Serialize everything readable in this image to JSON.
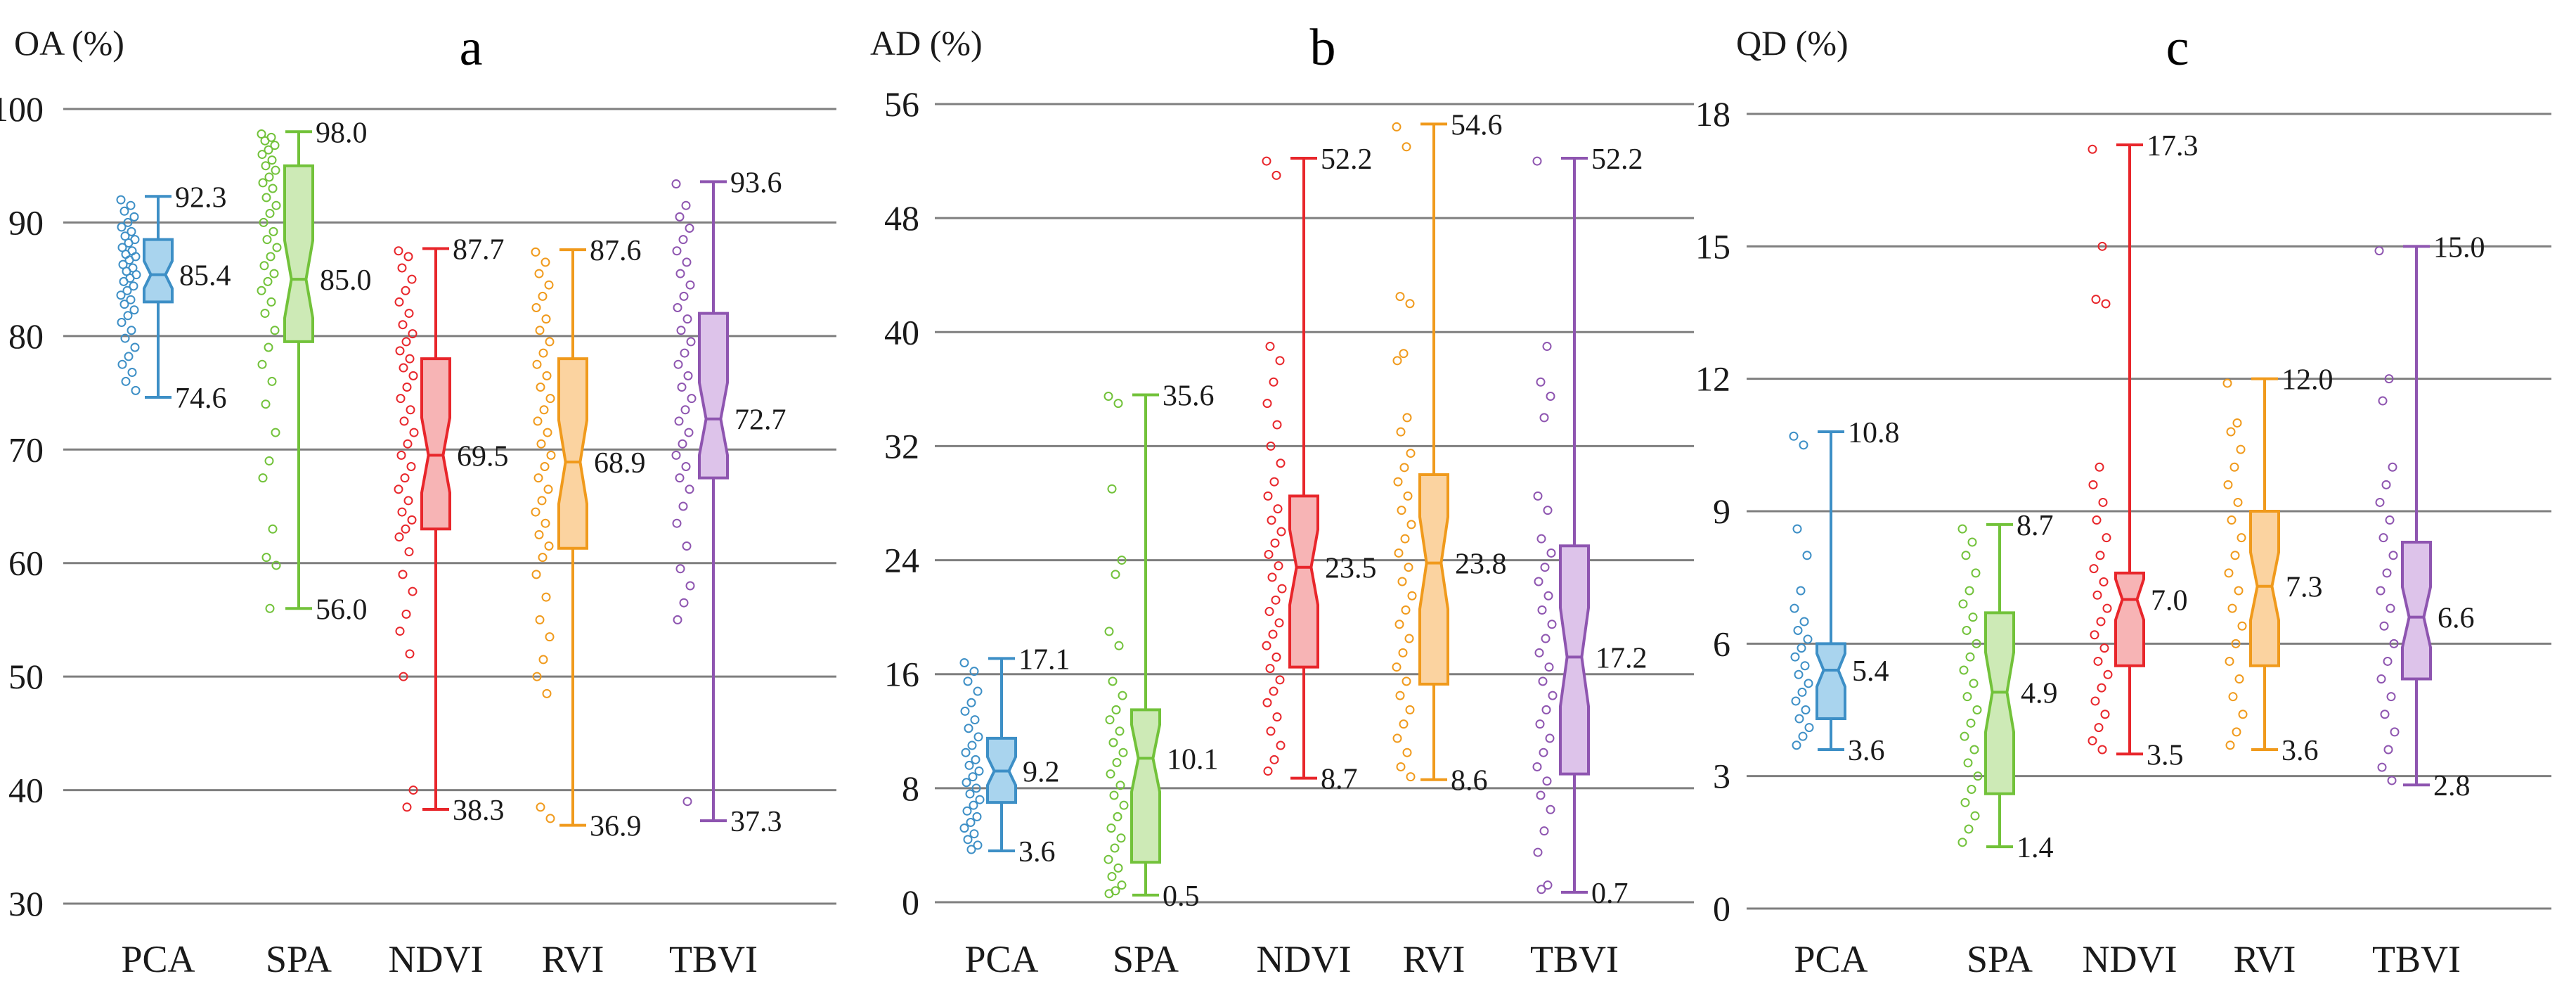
{
  "chart_data": [
    {
      "type": "boxplot",
      "title": "a",
      "ylabel": "OA (%)",
      "ylim": [
        30,
        100
      ],
      "yticks": [
        30,
        40,
        50,
        60,
        70,
        80,
        90,
        100
      ],
      "yticklabels": [
        "30",
        "40",
        "50",
        "60",
        "70",
        "80",
        "90",
        "100"
      ],
      "categories": [
        "PCA",
        "SPA",
        "NDVI",
        "RVI",
        "TBVI"
      ],
      "colors": [
        "#3d8fc6",
        "#72c23a",
        "#e8262b",
        "#f09a1c",
        "#8e55b0"
      ],
      "fills": [
        "#a9d4ee",
        "#cdeab6",
        "#f7b4b5",
        "#fbd3a0",
        "#ddc3ea"
      ],
      "series": [
        {
          "name": "PCA",
          "min": 74.6,
          "q1": 83.0,
          "median": 85.4,
          "q3": 88.5,
          "max": 92.3,
          "labels": [
            "92.3",
            "85.4",
            "74.6"
          ],
          "points": [
            92.0,
            91.5,
            91.0,
            90.5,
            90.0,
            89.6,
            89.2,
            88.8,
            88.5,
            88.2,
            87.8,
            87.5,
            87.2,
            87.0,
            86.7,
            86.3,
            86.0,
            85.7,
            85.4,
            85.1,
            84.8,
            84.4,
            84.0,
            83.6,
            83.2,
            82.8,
            82.3,
            81.8,
            81.2,
            80.5,
            79.8,
            79.0,
            78.2,
            77.5,
            76.8,
            76.0,
            75.2
          ]
        },
        {
          "name": "SPA",
          "min": 56.0,
          "q1": 79.5,
          "median": 85.0,
          "q3": 95.0,
          "max": 98.0,
          "labels": [
            "98.0",
            "85.0",
            "56.0"
          ],
          "points": [
            97.8,
            97.5,
            97.2,
            96.8,
            96.4,
            96.0,
            95.5,
            95.0,
            94.6,
            94.0,
            93.5,
            93.0,
            92.2,
            91.5,
            90.8,
            90.0,
            89.2,
            88.5,
            87.8,
            87.0,
            86.2,
            85.5,
            84.8,
            84.0,
            83.0,
            82.0,
            80.5,
            79.0,
            77.5,
            76.0,
            74.0,
            71.5,
            69.0,
            67.5,
            63.0,
            60.5,
            59.8,
            56.0
          ]
        },
        {
          "name": "NDVI",
          "min": 38.3,
          "q1": 63.0,
          "median": 69.5,
          "q3": 78.0,
          "max": 87.7,
          "labels": [
            "87.7",
            "69.5",
            "38.3"
          ],
          "points": [
            87.5,
            87.0,
            86.0,
            85.0,
            84.0,
            83.0,
            82.0,
            81.0,
            80.2,
            79.5,
            78.7,
            78.0,
            77.2,
            76.5,
            75.5,
            74.5,
            73.5,
            72.5,
            71.5,
            70.5,
            69.5,
            68.5,
            67.5,
            66.5,
            65.5,
            64.5,
            63.8,
            63.0,
            62.3,
            61.0,
            59.0,
            57.5,
            55.5,
            54.0,
            52.0,
            50.0,
            40.0,
            38.5
          ]
        },
        {
          "name": "RVI",
          "min": 36.9,
          "q1": 61.3,
          "median": 68.9,
          "q3": 78.0,
          "max": 87.6,
          "labels": [
            "87.6",
            "68.9",
            "36.9"
          ],
          "points": [
            87.4,
            86.5,
            85.5,
            84.5,
            83.5,
            82.5,
            81.5,
            80.5,
            79.5,
            78.5,
            77.5,
            76.5,
            75.5,
            74.5,
            73.5,
            72.5,
            71.5,
            70.5,
            69.5,
            68.5,
            67.5,
            66.5,
            65.5,
            64.5,
            63.5,
            62.5,
            61.5,
            60.5,
            59.0,
            57.0,
            55.0,
            53.5,
            51.5,
            50.0,
            48.5,
            38.5,
            37.5
          ]
        },
        {
          "name": "TBVI",
          "min": 37.3,
          "q1": 67.5,
          "median": 72.7,
          "q3": 82.0,
          "max": 93.6,
          "labels": [
            "93.6",
            "72.7",
            "37.3"
          ],
          "points": [
            93.4,
            91.5,
            90.5,
            89.5,
            88.5,
            87.5,
            86.5,
            85.5,
            84.5,
            83.5,
            82.5,
            81.5,
            80.5,
            79.5,
            78.5,
            77.5,
            76.5,
            75.5,
            74.5,
            73.5,
            72.5,
            71.5,
            70.5,
            69.5,
            68.5,
            67.5,
            66.5,
            65.0,
            63.5,
            61.5,
            59.5,
            58.0,
            56.5,
            55.0,
            39.0
          ]
        }
      ]
    },
    {
      "type": "boxplot",
      "title": "b",
      "ylabel": "AD (%)",
      "ylim": [
        0,
        56
      ],
      "yticks": [
        0,
        8,
        16,
        24,
        32,
        40,
        48,
        56
      ],
      "yticklabels": [
        "0",
        "8",
        "16",
        "24",
        "32",
        "40",
        "48",
        "56"
      ],
      "categories": [
        "PCA",
        "SPA",
        "NDVI",
        "RVI",
        "TBVI"
      ],
      "colors": [
        "#3d8fc6",
        "#72c23a",
        "#e8262b",
        "#f09a1c",
        "#8e55b0"
      ],
      "fills": [
        "#a9d4ee",
        "#cdeab6",
        "#f7b4b5",
        "#fbd3a0",
        "#ddc3ea"
      ],
      "series": [
        {
          "name": "PCA",
          "min": 3.6,
          "q1": 7.0,
          "median": 9.2,
          "q3": 11.5,
          "max": 17.1,
          "labels": [
            "17.1",
            "9.2",
            "3.6"
          ],
          "points": [
            16.8,
            16.2,
            15.5,
            14.8,
            14.0,
            13.4,
            12.8,
            12.2,
            11.6,
            11.0,
            10.5,
            10.0,
            9.6,
            9.2,
            8.8,
            8.4,
            8.0,
            7.6,
            7.2,
            6.8,
            6.4,
            6.0,
            5.6,
            5.2,
            4.8,
            4.4,
            4.0,
            3.7
          ]
        },
        {
          "name": "SPA",
          "min": 0.5,
          "q1": 2.8,
          "median": 10.1,
          "q3": 13.5,
          "max": 35.6,
          "labels": [
            "35.6",
            "10.1",
            "0.5"
          ],
          "points": [
            35.5,
            35.0,
            29.0,
            24.0,
            23.0,
            19.0,
            18.0,
            15.5,
            14.5,
            13.5,
            12.8,
            12.0,
            11.2,
            10.5,
            9.8,
            9.0,
            8.2,
            7.5,
            6.8,
            6.0,
            5.2,
            4.5,
            3.8,
            3.0,
            2.4,
            1.8,
            1.2,
            0.8,
            0.6
          ]
        },
        {
          "name": "NDVI",
          "min": 8.7,
          "q1": 16.5,
          "median": 23.5,
          "q3": 28.5,
          "max": 52.2,
          "labels": [
            "52.2",
            "23.5",
            "8.7"
          ],
          "points": [
            52.0,
            51.0,
            39.0,
            38.0,
            36.5,
            35.0,
            33.5,
            32.0,
            30.8,
            29.5,
            28.5,
            27.6,
            26.8,
            26.0,
            25.2,
            24.4,
            23.6,
            22.8,
            22.0,
            21.2,
            20.4,
            19.6,
            18.8,
            18.0,
            17.2,
            16.4,
            15.6,
            14.8,
            14.0,
            13.0,
            12.0,
            11.0,
            10.0,
            9.2
          ]
        },
        {
          "name": "RVI",
          "min": 8.6,
          "q1": 15.3,
          "median": 23.8,
          "q3": 30.0,
          "max": 54.6,
          "labels": [
            "54.6",
            "23.8",
            "8.6"
          ],
          "points": [
            54.4,
            53.0,
            42.5,
            42.0,
            38.5,
            38.0,
            34.0,
            33.0,
            31.5,
            30.5,
            29.5,
            28.5,
            27.5,
            26.5,
            25.5,
            24.5,
            23.5,
            22.5,
            21.5,
            20.5,
            19.5,
            18.5,
            17.5,
            16.5,
            15.5,
            14.5,
            13.5,
            12.5,
            11.5,
            10.5,
            9.5,
            8.8
          ]
        },
        {
          "name": "TBVI",
          "min": 0.7,
          "q1": 9.0,
          "median": 17.2,
          "q3": 25.0,
          "max": 52.2,
          "labels": [
            "52.2",
            "17.2",
            "0.7"
          ],
          "points": [
            52.0,
            39.0,
            36.5,
            35.5,
            34.0,
            28.5,
            27.5,
            25.5,
            24.5,
            23.5,
            22.5,
            21.5,
            20.5,
            19.5,
            18.5,
            17.5,
            16.5,
            15.5,
            14.5,
            13.5,
            12.5,
            11.5,
            10.5,
            9.5,
            8.5,
            7.5,
            6.5,
            5.0,
            3.5,
            1.2,
            0.9
          ]
        }
      ]
    },
    {
      "type": "boxplot",
      "title": "c",
      "ylabel": "QD (%)",
      "ylim": [
        0,
        18
      ],
      "yticks": [
        0,
        3,
        6,
        9,
        12,
        15,
        18
      ],
      "yticklabels": [
        "0",
        "3",
        "6",
        "9",
        "12",
        "15",
        "18"
      ],
      "categories": [
        "PCA",
        "SPA",
        "NDVI",
        "RVI",
        "TBVI"
      ],
      "colors": [
        "#3d8fc6",
        "#72c23a",
        "#e8262b",
        "#f09a1c",
        "#8e55b0"
      ],
      "fills": [
        "#a9d4ee",
        "#cdeab6",
        "#f7b4b5",
        "#fbd3a0",
        "#ddc3ea"
      ],
      "series": [
        {
          "name": "PCA",
          "min": 3.6,
          "q1": 4.3,
          "median": 5.4,
          "q3": 6.0,
          "max": 10.8,
          "labels": [
            "10.8",
            "5.4",
            "3.6"
          ],
          "points": [
            10.7,
            10.5,
            8.6,
            8.0,
            7.2,
            6.8,
            6.5,
            6.3,
            6.1,
            5.9,
            5.7,
            5.5,
            5.3,
            5.1,
            4.9,
            4.7,
            4.5,
            4.3,
            4.1,
            3.9,
            3.7
          ]
        },
        {
          "name": "SPA",
          "min": 1.4,
          "q1": 2.6,
          "median": 4.9,
          "q3": 6.7,
          "max": 8.7,
          "labels": [
            "8.7",
            "4.9",
            "1.4"
          ],
          "points": [
            8.6,
            8.3,
            8.0,
            7.6,
            7.2,
            6.9,
            6.6,
            6.3,
            6.0,
            5.7,
            5.4,
            5.1,
            4.8,
            4.5,
            4.2,
            3.9,
            3.6,
            3.3,
            3.0,
            2.7,
            2.4,
            2.1,
            1.8,
            1.5
          ]
        },
        {
          "name": "NDVI",
          "min": 3.5,
          "q1": 5.5,
          "median": 7.0,
          "q3": 7.6,
          "max": 17.3,
          "labels": [
            "17.3",
            "7.0",
            "3.5"
          ],
          "points": [
            17.2,
            15.0,
            13.8,
            13.7,
            10.0,
            9.6,
            9.2,
            8.8,
            8.4,
            8.0,
            7.7,
            7.4,
            7.1,
            6.8,
            6.5,
            6.2,
            5.9,
            5.6,
            5.3,
            5.0,
            4.7,
            4.4,
            4.1,
            3.8,
            3.6
          ]
        },
        {
          "name": "RVI",
          "min": 3.6,
          "q1": 5.5,
          "median": 7.3,
          "q3": 9.0,
          "max": 12.0,
          "labels": [
            "12.0",
            "7.3",
            "3.6"
          ],
          "points": [
            11.9,
            11.0,
            10.8,
            10.4,
            10.0,
            9.6,
            9.2,
            8.8,
            8.4,
            8.0,
            7.6,
            7.2,
            6.8,
            6.4,
            6.0,
            5.6,
            5.2,
            4.8,
            4.4,
            4.0,
            3.7
          ]
        },
        {
          "name": "TBVI",
          "min": 2.8,
          "q1": 5.2,
          "median": 6.6,
          "q3": 8.3,
          "max": 15.0,
          "labels": [
            "15.0",
            "6.6",
            "2.8"
          ],
          "points": [
            14.9,
            12.0,
            11.5,
            10.0,
            9.6,
            9.2,
            8.8,
            8.4,
            8.0,
            7.6,
            7.2,
            6.8,
            6.4,
            6.0,
            5.6,
            5.2,
            4.8,
            4.4,
            4.0,
            3.6,
            3.2,
            2.9
          ]
        }
      ]
    }
  ]
}
